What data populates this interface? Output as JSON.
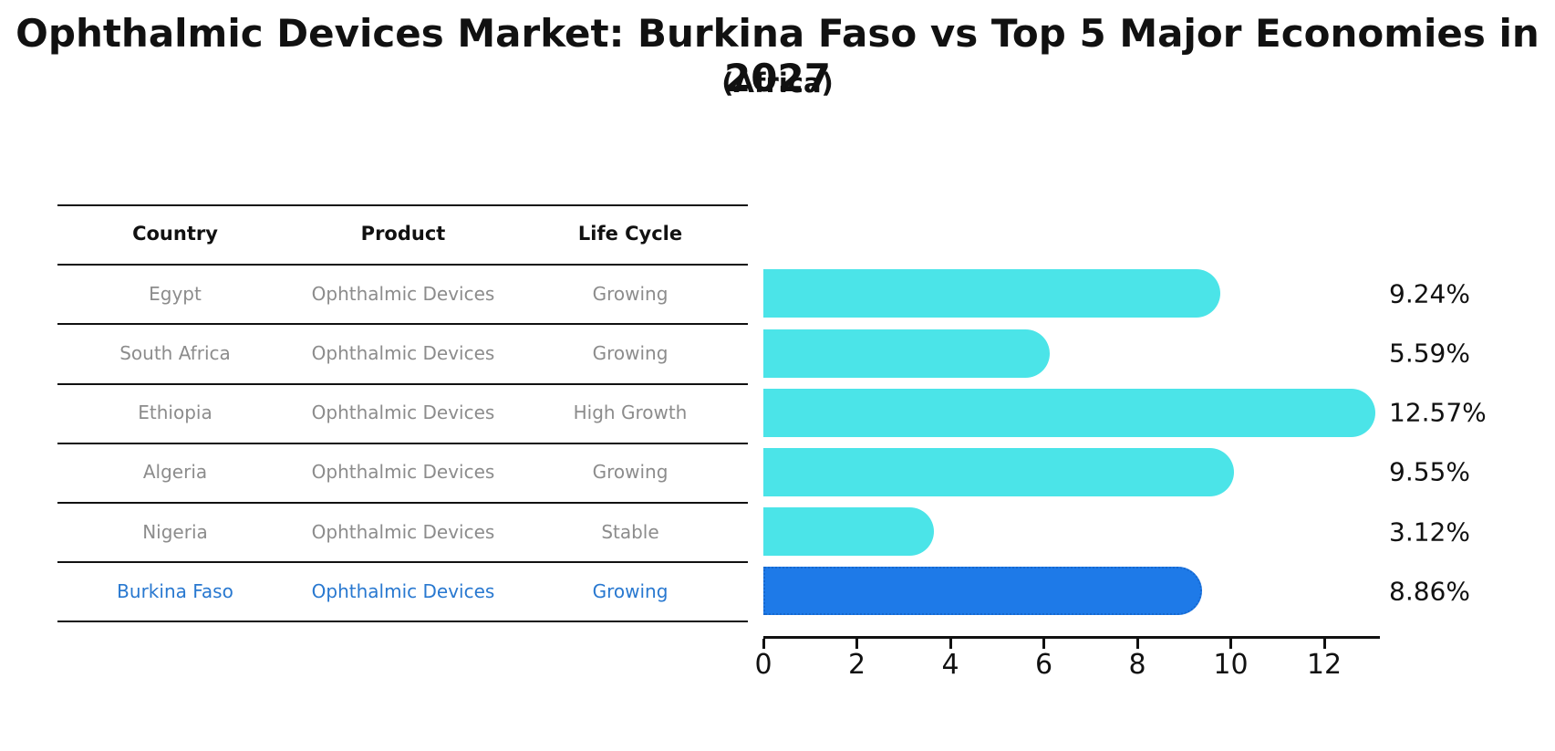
{
  "title": "Ophthalmic Devices Market: Burkina Faso vs Top 5 Major Economies in 2027",
  "subtitle": "(Africa)",
  "table": {
    "columns": [
      "Country",
      "Product",
      "Life Cycle"
    ],
    "rows": [
      {
        "country": "Egypt",
        "product": "Ophthalmic Devices",
        "life_cycle": "Growing",
        "highlight": false
      },
      {
        "country": "South Africa",
        "product": "Ophthalmic Devices",
        "life_cycle": "Growing",
        "highlight": false
      },
      {
        "country": "Ethiopia",
        "product": "Ophthalmic Devices",
        "life_cycle": "High Growth",
        "highlight": false
      },
      {
        "country": "Algeria",
        "product": "Ophthalmic Devices",
        "life_cycle": "Growing",
        "highlight": false
      },
      {
        "country": "Nigeria",
        "product": "Ophthalmic Devices",
        "life_cycle": "Stable",
        "highlight": false
      },
      {
        "country": "Burkina Faso",
        "product": "Ophthalmic Devices",
        "life_cycle": "Growing",
        "highlight": true
      }
    ]
  },
  "chart_data": {
    "type": "bar",
    "orientation": "horizontal",
    "title": "Ophthalmic Devices Market: Burkina Faso vs Top 5 Major Economies in 2027",
    "subtitle": "(Africa)",
    "categories": [
      "Egypt",
      "South Africa",
      "Ethiopia",
      "Algeria",
      "Nigeria",
      "Burkina Faso"
    ],
    "values": [
      9.24,
      5.59,
      12.57,
      9.55,
      3.12,
      8.86
    ],
    "value_labels": [
      "9.24%",
      "5.59%",
      "12.57%",
      "9.55%",
      "3.12%",
      "8.86%"
    ],
    "x_ticks": [
      "0",
      "2",
      "4",
      "6",
      "8",
      "10",
      "12"
    ],
    "xlim": [
      0,
      13.2
    ],
    "xlabel": "",
    "ylabel": "",
    "grid": false,
    "legend": "none",
    "highlight_index": 5
  },
  "colors": {
    "bar": "#4BE4E8",
    "bar_highlight": "#1E7AE8",
    "bar_highlight_border": "#1668CF",
    "text_gray": "#8C8C8C",
    "text_highlight": "#2878D0",
    "line": "#111111"
  }
}
